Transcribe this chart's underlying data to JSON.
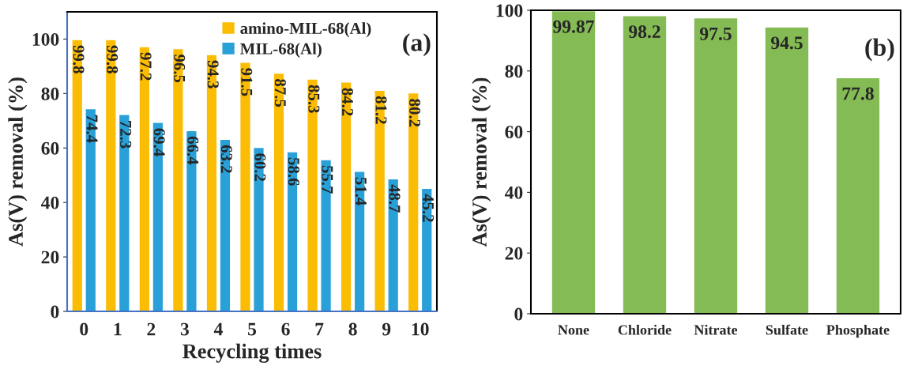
{
  "chart_data": [
    {
      "type": "bar",
      "categories": [
        "0",
        "1",
        "2",
        "3",
        "4",
        "5",
        "6",
        "7",
        "8",
        "9",
        "10"
      ],
      "xlabel": "Recycling times",
      "ylabel": "As(V) removal (%)",
      "series": [
        {
          "name": "amino-MIL-68(Al)",
          "color": "#fbbc04",
          "values": [
            99.8,
            99.8,
            97.2,
            96.5,
            94.3,
            91.5,
            87.5,
            85.3,
            84.2,
            81.2,
            80.2
          ]
        },
        {
          "name": "MIL-68(Al)",
          "color": "#29a0d8",
          "values": [
            74.4,
            72.3,
            69.4,
            66.4,
            63.2,
            60.2,
            58.6,
            55.7,
            51.4,
            48.7,
            45.2
          ]
        }
      ],
      "ylim": [
        0,
        110
      ],
      "yticks": [
        0,
        20,
        40,
        60,
        80,
        100
      ],
      "data_labels": true,
      "legend": "top right",
      "grid": false,
      "annotations": [
        "(a)"
      ]
    },
    {
      "type": "bar",
      "categories": [
        "None",
        "Chloride",
        "Nitrate",
        "Sulfate",
        "Phosphate"
      ],
      "ylabel": "As(V) removal (%)",
      "values": [
        99.87,
        98.2,
        97.5,
        94.5,
        77.8
      ],
      "color": "#84bb55",
      "ylim": [
        0,
        100
      ],
      "yticks": [
        0,
        20,
        40,
        60,
        80,
        100
      ],
      "data_labels": true,
      "grid": false,
      "annotations": [
        "(b)"
      ]
    }
  ]
}
